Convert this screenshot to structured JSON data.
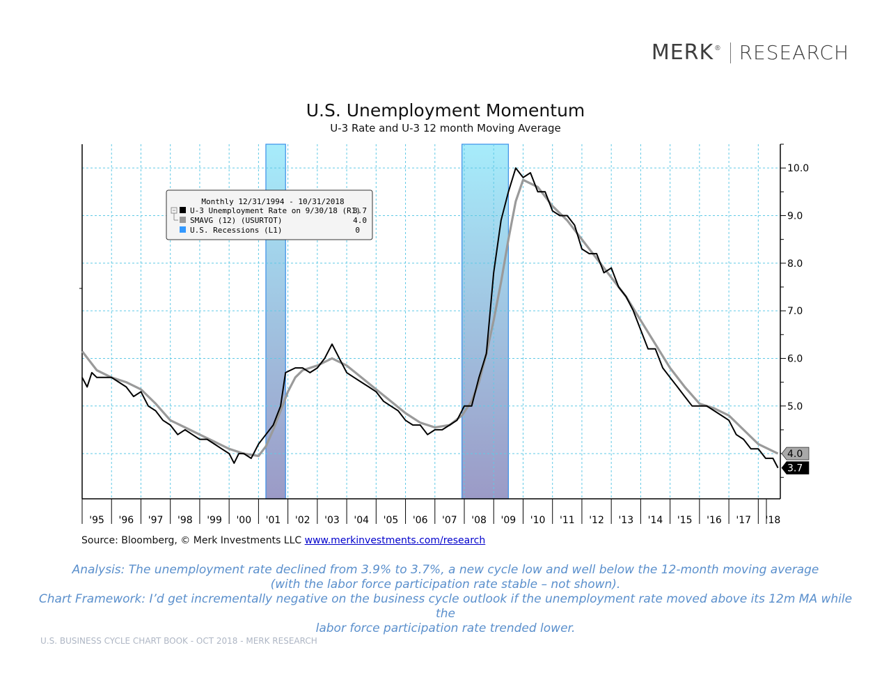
{
  "logo": {
    "brand": "MERK",
    "reg": "®",
    "division": "RESEARCH"
  },
  "title": "U.S. Unemployment Momentum",
  "subtitle": "U-3 Rate and U-3 12 month Moving Average",
  "legend": {
    "header": "Monthly 12/31/1994 - 10/31/2018",
    "items": [
      {
        "label": "U-3 Unemployment Rate on 9/30/18 (R1)",
        "value": "3.7",
        "color": "#000000"
      },
      {
        "label": "SMAVG (12) (USURTOT)",
        "value": "4.0",
        "color": "#999999"
      },
      {
        "label": "U.S. Recessions (L1)",
        "value": "0",
        "color": "#3399ff"
      }
    ]
  },
  "source": {
    "text": "Source: Bloomberg, © Merk Investments LLC",
    "link": "www.merkinvestments.com/research"
  },
  "analysis": [
    "Analysis: The unemployment rate declined from 3.9% to 3.7%, a new cycle low and well below the 12-month moving average",
    "(with the labor force participation rate stable – not shown).",
    "Chart Framework: I’d get incrementally negative on the business cycle outlook if the unemployment rate moved above its 12m MA while the",
    "labor force participation rate trended lower."
  ],
  "footer": "U.S. BUSINESS CYCLE CHART BOOK - OCT 2018 - MERK RESEARCH",
  "chart_data": {
    "type": "line",
    "x_range": [
      1995.0,
      2018.75
    ],
    "ylim": [
      3.05,
      10.5
    ],
    "y_ticks": [
      "5.0",
      "6.0",
      "7.0",
      "8.0",
      "9.0",
      "10.0"
    ],
    "x_tick_labels": [
      "'95",
      "'96",
      "'97",
      "'98",
      "'99",
      "'00",
      "'01",
      "'02",
      "'03",
      "'04",
      "'05",
      "'06",
      "'07",
      "'08",
      "'09",
      "'10",
      "'11",
      "'12",
      "'13",
      "'14",
      "'15",
      "'16",
      "'17",
      "'18"
    ],
    "recessions": [
      [
        2001.25,
        2001.92
      ],
      [
        2007.92,
        2009.5
      ]
    ],
    "series": [
      {
        "name": "U-3 Unemployment Rate",
        "color": "#000000",
        "last_label": "3.7",
        "points": [
          [
            1995.0,
            5.6
          ],
          [
            1995.17,
            5.4
          ],
          [
            1995.33,
            5.7
          ],
          [
            1995.5,
            5.6
          ],
          [
            1995.75,
            5.6
          ],
          [
            1996.0,
            5.6
          ],
          [
            1996.25,
            5.5
          ],
          [
            1996.5,
            5.4
          ],
          [
            1996.75,
            5.2
          ],
          [
            1997.0,
            5.3
          ],
          [
            1997.25,
            5.0
          ],
          [
            1997.5,
            4.9
          ],
          [
            1997.75,
            4.7
          ],
          [
            1998.0,
            4.6
          ],
          [
            1998.25,
            4.4
          ],
          [
            1998.5,
            4.5
          ],
          [
            1998.75,
            4.4
          ],
          [
            1999.0,
            4.3
          ],
          [
            1999.25,
            4.3
          ],
          [
            1999.5,
            4.2
          ],
          [
            1999.75,
            4.1
          ],
          [
            2000.0,
            4.0
          ],
          [
            2000.17,
            3.8
          ],
          [
            2000.33,
            4.0
          ],
          [
            2000.5,
            4.0
          ],
          [
            2000.75,
            3.9
          ],
          [
            2001.0,
            4.2
          ],
          [
            2001.25,
            4.4
          ],
          [
            2001.5,
            4.6
          ],
          [
            2001.75,
            5.0
          ],
          [
            2001.92,
            5.7
          ],
          [
            2002.25,
            5.8
          ],
          [
            2002.5,
            5.8
          ],
          [
            2002.75,
            5.7
          ],
          [
            2003.0,
            5.8
          ],
          [
            2003.25,
            6.0
          ],
          [
            2003.5,
            6.3
          ],
          [
            2003.75,
            6.0
          ],
          [
            2004.0,
            5.7
          ],
          [
            2004.25,
            5.6
          ],
          [
            2004.5,
            5.5
          ],
          [
            2004.75,
            5.4
          ],
          [
            2005.0,
            5.3
          ],
          [
            2005.25,
            5.1
          ],
          [
            2005.5,
            5.0
          ],
          [
            2005.75,
            4.9
          ],
          [
            2006.0,
            4.7
          ],
          [
            2006.25,
            4.6
          ],
          [
            2006.5,
            4.6
          ],
          [
            2006.75,
            4.4
          ],
          [
            2007.0,
            4.5
          ],
          [
            2007.25,
            4.5
          ],
          [
            2007.5,
            4.6
          ],
          [
            2007.75,
            4.7
          ],
          [
            2008.0,
            5.0
          ],
          [
            2008.25,
            5.0
          ],
          [
            2008.5,
            5.6
          ],
          [
            2008.75,
            6.1
          ],
          [
            2009.0,
            7.8
          ],
          [
            2009.25,
            8.9
          ],
          [
            2009.5,
            9.5
          ],
          [
            2009.75,
            10.0
          ],
          [
            2010.0,
            9.8
          ],
          [
            2010.25,
            9.9
          ],
          [
            2010.5,
            9.5
          ],
          [
            2010.75,
            9.5
          ],
          [
            2011.0,
            9.1
          ],
          [
            2011.25,
            9.0
          ],
          [
            2011.5,
            9.0
          ],
          [
            2011.75,
            8.8
          ],
          [
            2012.0,
            8.3
          ],
          [
            2012.25,
            8.2
          ],
          [
            2012.5,
            8.2
          ],
          [
            2012.75,
            7.8
          ],
          [
            2013.0,
            7.9
          ],
          [
            2013.25,
            7.5
          ],
          [
            2013.5,
            7.3
          ],
          [
            2013.75,
            7.0
          ],
          [
            2014.0,
            6.6
          ],
          [
            2014.25,
            6.2
          ],
          [
            2014.5,
            6.2
          ],
          [
            2014.75,
            5.8
          ],
          [
            2015.0,
            5.6
          ],
          [
            2015.25,
            5.4
          ],
          [
            2015.5,
            5.2
          ],
          [
            2015.75,
            5.0
          ],
          [
            2016.0,
            5.0
          ],
          [
            2016.25,
            5.0
          ],
          [
            2016.5,
            4.9
          ],
          [
            2016.75,
            4.8
          ],
          [
            2017.0,
            4.7
          ],
          [
            2017.25,
            4.4
          ],
          [
            2017.5,
            4.3
          ],
          [
            2017.75,
            4.1
          ],
          [
            2018.0,
            4.1
          ],
          [
            2018.25,
            3.9
          ],
          [
            2018.5,
            3.9
          ],
          [
            2018.67,
            3.7
          ]
        ]
      },
      {
        "name": "SMAVG (12) (USURTOT)",
        "color": "#9a9a9a",
        "last_label": "4.0",
        "points": [
          [
            1995.0,
            6.15
          ],
          [
            1995.5,
            5.75
          ],
          [
            1996.0,
            5.6
          ],
          [
            1996.5,
            5.5
          ],
          [
            1997.0,
            5.35
          ],
          [
            1997.5,
            5.05
          ],
          [
            1998.0,
            4.7
          ],
          [
            1998.5,
            4.55
          ],
          [
            1999.0,
            4.4
          ],
          [
            1999.5,
            4.25
          ],
          [
            2000.0,
            4.1
          ],
          [
            2000.5,
            4.0
          ],
          [
            2001.0,
            3.95
          ],
          [
            2001.25,
            4.15
          ],
          [
            2001.5,
            4.5
          ],
          [
            2001.75,
            4.9
          ],
          [
            2002.0,
            5.3
          ],
          [
            2002.25,
            5.6
          ],
          [
            2002.5,
            5.75
          ],
          [
            2003.0,
            5.85
          ],
          [
            2003.5,
            6.0
          ],
          [
            2004.0,
            5.85
          ],
          [
            2004.5,
            5.6
          ],
          [
            2005.0,
            5.35
          ],
          [
            2005.5,
            5.1
          ],
          [
            2006.0,
            4.85
          ],
          [
            2006.5,
            4.65
          ],
          [
            2007.0,
            4.55
          ],
          [
            2007.5,
            4.6
          ],
          [
            2007.92,
            4.8
          ],
          [
            2008.25,
            5.1
          ],
          [
            2008.5,
            5.5
          ],
          [
            2008.75,
            6.1
          ],
          [
            2009.0,
            6.8
          ],
          [
            2009.25,
            7.6
          ],
          [
            2009.5,
            8.5
          ],
          [
            2009.75,
            9.3
          ],
          [
            2010.0,
            9.75
          ],
          [
            2010.5,
            9.6
          ],
          [
            2011.0,
            9.2
          ],
          [
            2011.5,
            8.9
          ],
          [
            2012.0,
            8.5
          ],
          [
            2012.5,
            8.1
          ],
          [
            2013.0,
            7.7
          ],
          [
            2013.5,
            7.3
          ],
          [
            2014.0,
            6.8
          ],
          [
            2014.5,
            6.3
          ],
          [
            2015.0,
            5.8
          ],
          [
            2015.5,
            5.4
          ],
          [
            2016.0,
            5.05
          ],
          [
            2016.5,
            4.95
          ],
          [
            2017.0,
            4.8
          ],
          [
            2017.5,
            4.5
          ],
          [
            2018.0,
            4.2
          ],
          [
            2018.67,
            4.0
          ]
        ]
      }
    ]
  }
}
